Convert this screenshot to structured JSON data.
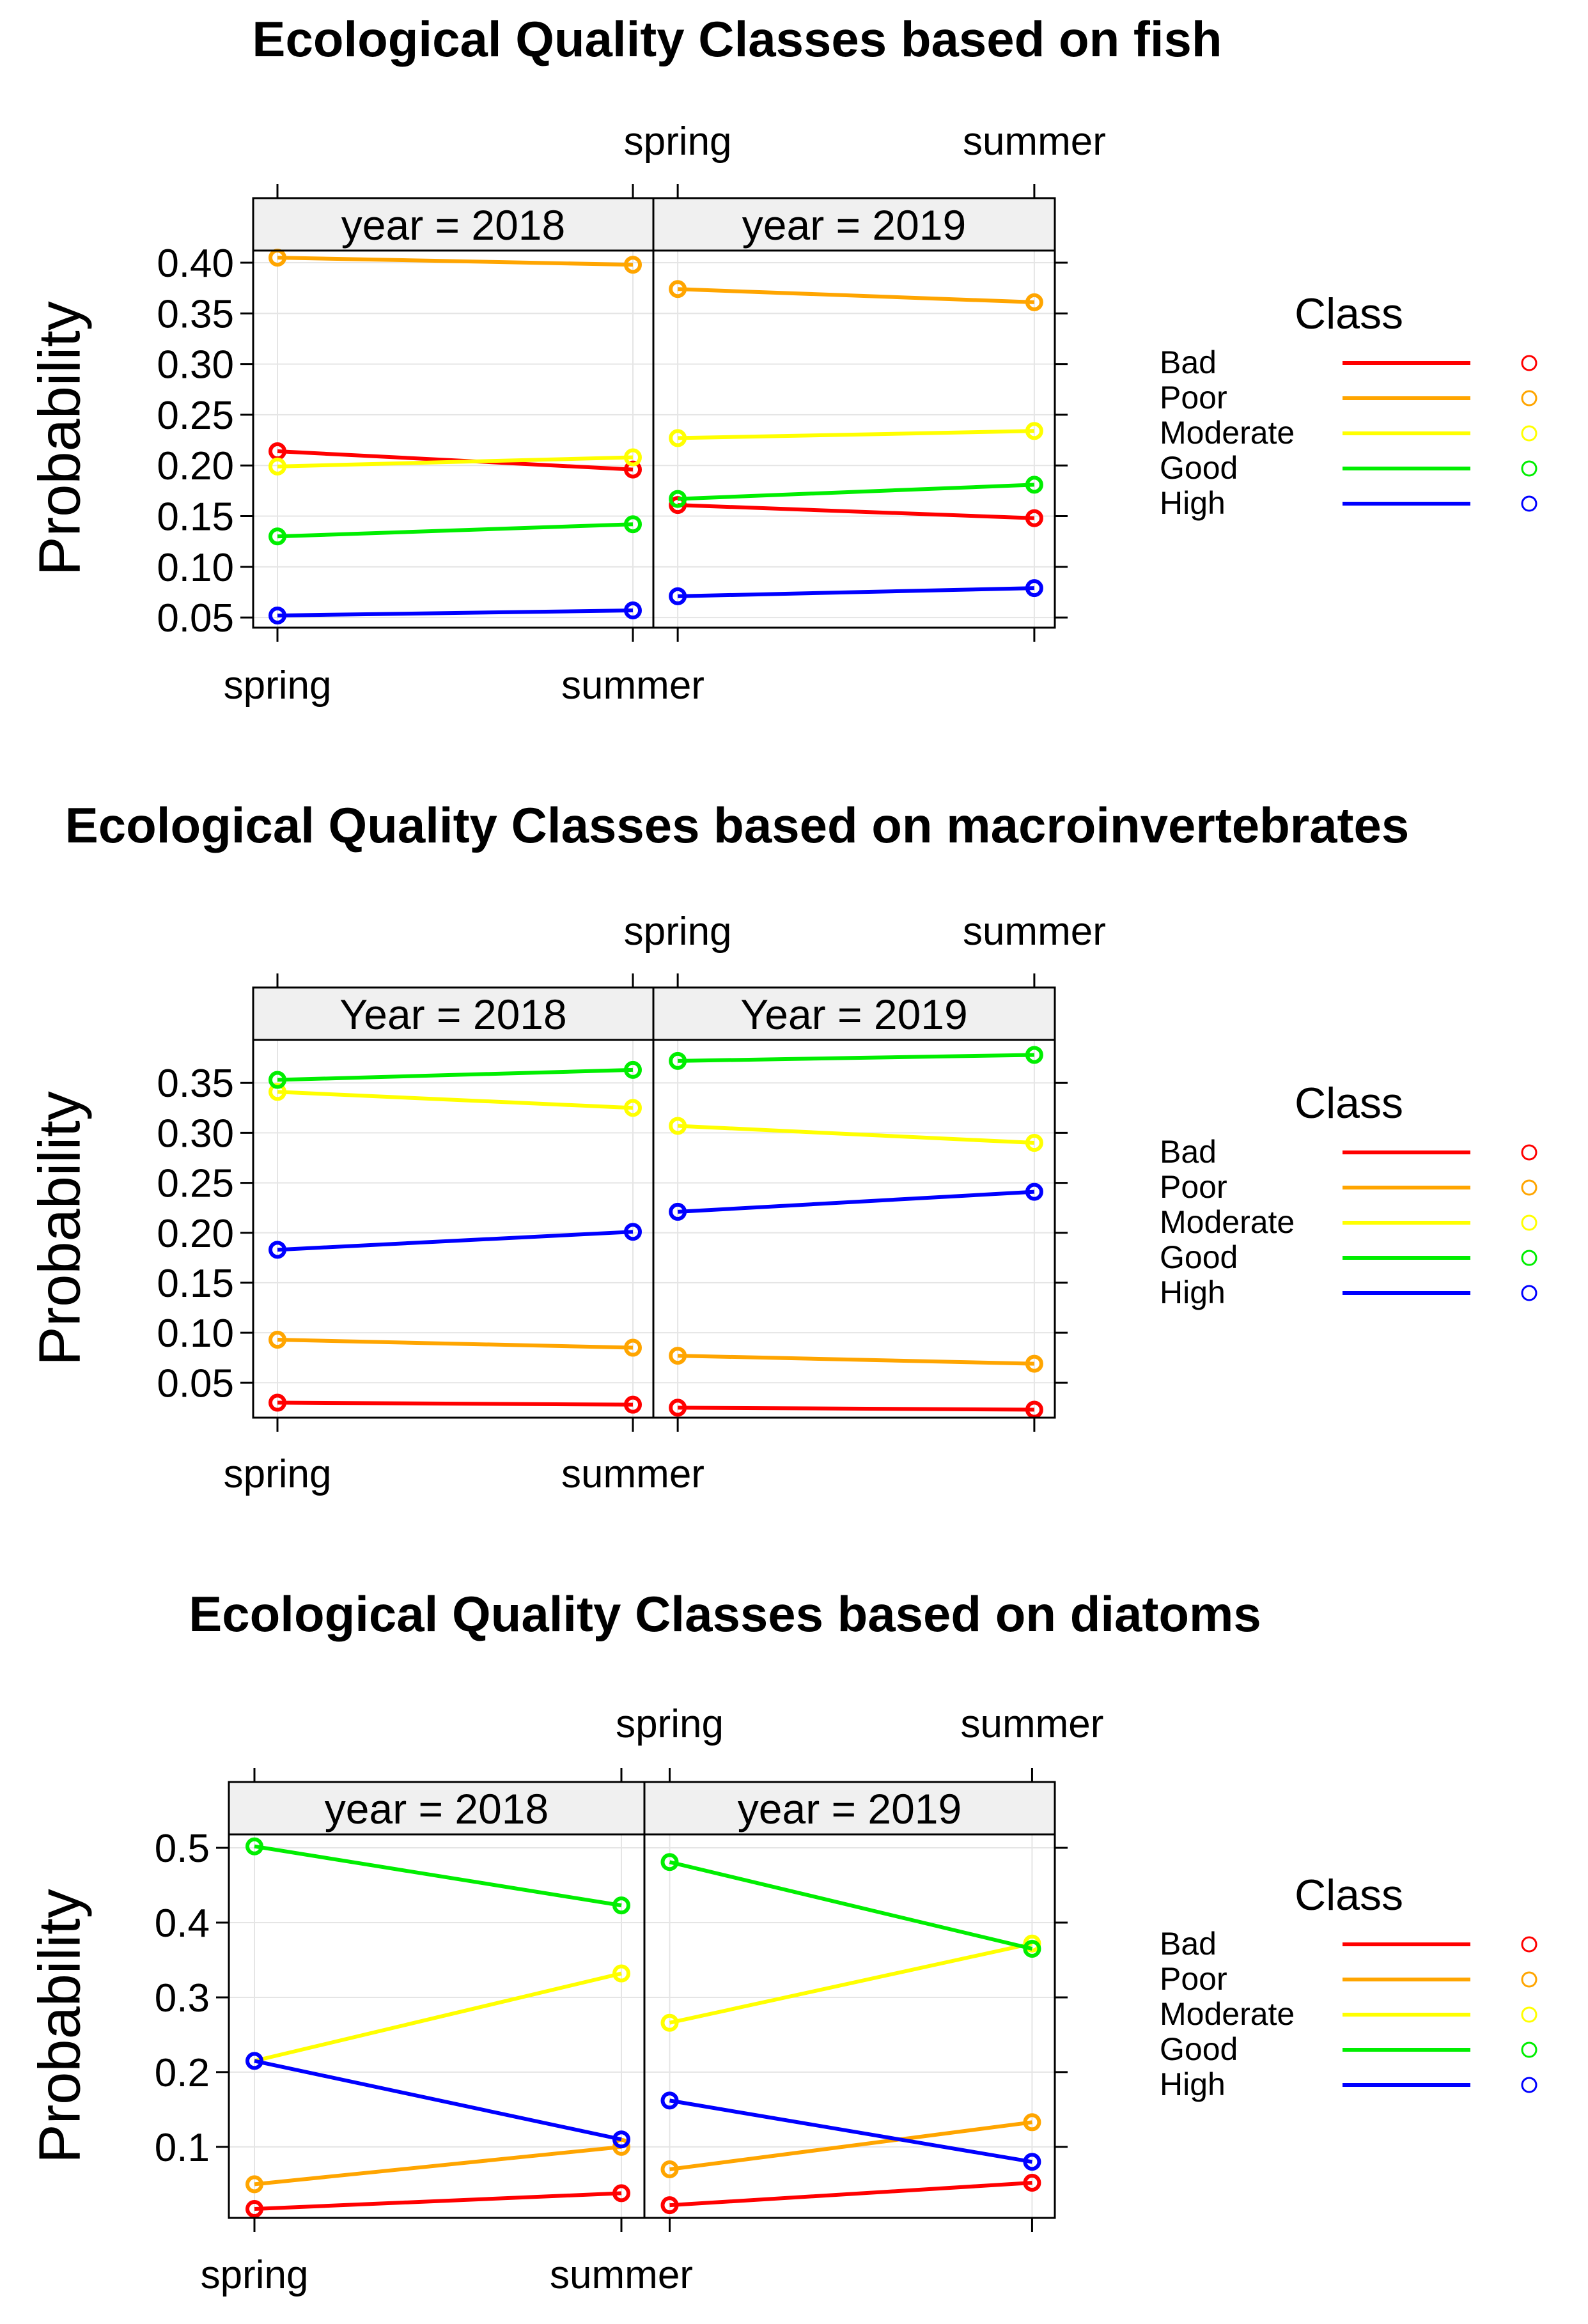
{
  "colors": {
    "Bad": "#ff0000",
    "Poor": "#ffa500",
    "Moderate": "#ffff00",
    "Good": "#00ee00",
    "High": "#0000ff",
    "strip_bg": "#f0f0f0",
    "grid": "#e5e5e5"
  },
  "legend_title": "Class",
  "chart_data": [
    {
      "type": "line",
      "title": "Ecological Quality Classes based on fish",
      "ylabel": "Probability",
      "categories": [
        "spring",
        "summer"
      ],
      "ylim": [
        0.04,
        0.412
      ],
      "yticks": [
        0.05,
        0.1,
        0.15,
        0.2,
        0.25,
        0.3,
        0.35,
        0.4
      ],
      "tick_decimals": 2,
      "legend": [
        "Bad",
        "Poor",
        "Moderate",
        "Good",
        "High"
      ],
      "panels": [
        {
          "strip": "year = 2018",
          "series": [
            {
              "name": "Bad",
              "values": [
                0.214,
                0.196
              ]
            },
            {
              "name": "Poor",
              "values": [
                0.405,
                0.398
              ]
            },
            {
              "name": "Moderate",
              "values": [
                0.199,
                0.208
              ]
            },
            {
              "name": "Good",
              "values": [
                0.13,
                0.142
              ]
            },
            {
              "name": "High",
              "values": [
                0.052,
                0.057
              ]
            }
          ]
        },
        {
          "strip": "year = 2019",
          "series": [
            {
              "name": "Bad",
              "values": [
                0.161,
                0.148
              ]
            },
            {
              "name": "Poor",
              "values": [
                0.374,
                0.361
              ]
            },
            {
              "name": "Moderate",
              "values": [
                0.227,
                0.234
              ]
            },
            {
              "name": "Good",
              "values": [
                0.167,
                0.181
              ]
            },
            {
              "name": "High",
              "values": [
                0.071,
                0.079
              ]
            }
          ]
        }
      ]
    },
    {
      "type": "line",
      "title": "Ecological Quality Classes based on macroinvertebrates",
      "ylabel": "Probability",
      "categories": [
        "spring",
        "summer"
      ],
      "ylim": [
        0.015,
        0.393
      ],
      "yticks": [
        0.05,
        0.1,
        0.15,
        0.2,
        0.25,
        0.3,
        0.35
      ],
      "tick_decimals": 2,
      "legend": [
        "Bad",
        "Poor",
        "Moderate",
        "Good",
        "High"
      ],
      "panels": [
        {
          "strip": "Year = 2018",
          "series": [
            {
              "name": "Bad",
              "values": [
                0.03,
                0.028
              ]
            },
            {
              "name": "Poor",
              "values": [
                0.093,
                0.085
              ]
            },
            {
              "name": "Moderate",
              "values": [
                0.341,
                0.325
              ]
            },
            {
              "name": "Good",
              "values": [
                0.353,
                0.363
              ]
            },
            {
              "name": "High",
              "values": [
                0.183,
                0.201
              ]
            }
          ]
        },
        {
          "strip": "Year = 2019",
          "series": [
            {
              "name": "Bad",
              "values": [
                0.025,
                0.023
              ]
            },
            {
              "name": "Poor",
              "values": [
                0.077,
                0.069
              ]
            },
            {
              "name": "Moderate",
              "values": [
                0.307,
                0.29
              ]
            },
            {
              "name": "Good",
              "values": [
                0.372,
                0.378
              ]
            },
            {
              "name": "High",
              "values": [
                0.221,
                0.241
              ]
            }
          ]
        }
      ]
    },
    {
      "type": "line",
      "title": "Ecological Quality Classes based on diatoms",
      "ylabel": "Probability",
      "categories": [
        "spring",
        "summer"
      ],
      "ylim": [
        0.005,
        0.518
      ],
      "yticks": [
        0.1,
        0.2,
        0.3,
        0.4,
        0.5
      ],
      "tick_decimals": 1,
      "legend": [
        "Bad",
        "Poor",
        "Moderate",
        "Good",
        "High"
      ],
      "panels": [
        {
          "strip": "year = 2018",
          "series": [
            {
              "name": "Bad",
              "values": [
                0.017,
                0.038
              ]
            },
            {
              "name": "Poor",
              "values": [
                0.05,
                0.1
              ]
            },
            {
              "name": "Moderate",
              "values": [
                0.215,
                0.332
              ]
            },
            {
              "name": "Good",
              "values": [
                0.502,
                0.423
              ]
            },
            {
              "name": "High",
              "values": [
                0.215,
                0.11
              ]
            }
          ]
        },
        {
          "strip": "year = 2019",
          "series": [
            {
              "name": "Bad",
              "values": [
                0.022,
                0.052
              ]
            },
            {
              "name": "Poor",
              "values": [
                0.07,
                0.133
              ]
            },
            {
              "name": "Moderate",
              "values": [
                0.266,
                0.372
              ]
            },
            {
              "name": "Good",
              "values": [
                0.481,
                0.365
              ]
            },
            {
              "name": "High",
              "values": [
                0.162,
                0.08
              ]
            }
          ]
        }
      ]
    }
  ]
}
